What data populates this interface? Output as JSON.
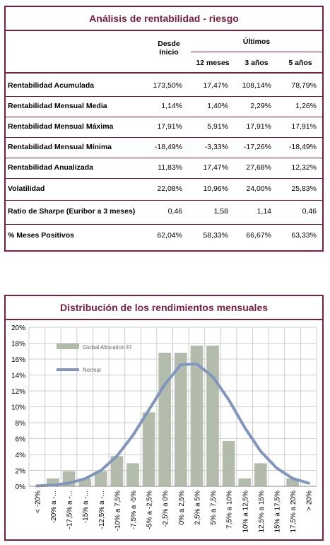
{
  "table": {
    "title": "Análisis de rentabilidad - riesgo",
    "headers": {
      "since": "Desde\nInicio",
      "since_line1": "Desde",
      "since_line2": "Inicio",
      "last": "Últimos",
      "cols": [
        "12 meses",
        "3 años",
        "5 años"
      ]
    },
    "rows": [
      {
        "label": "Rentabilidad Acumulada",
        "values": [
          "173,50%",
          "17,47%",
          "108,14%",
          "78,79%"
        ]
      },
      {
        "label": "Rentabilidad Mensual Media",
        "values": [
          "1,14%",
          "1,40%",
          "2,29%",
          "1,26%"
        ]
      },
      {
        "label": "Rentabilidad Mensual Máxima",
        "values": [
          "17,91%",
          "5,91%",
          "17,91%",
          "17,91%"
        ]
      },
      {
        "label": "Rentabilidad Mensual Mínima",
        "values": [
          "-18,49%",
          "-3,33%",
          "-17,26%",
          "-18,49%"
        ]
      },
      {
        "label": "Rentabilidad Anualizada",
        "values": [
          "11,83%",
          "17,47%",
          "27,68%",
          "12,32%"
        ]
      },
      {
        "label": "Volatilidad",
        "values": [
          "22,08%",
          "10,96%",
          "24,00%",
          "25,83%"
        ]
      },
      {
        "label": "Ratio de Sharpe (Euribor a 3 meses)",
        "values": [
          "0,46",
          "1,58",
          "1,14",
          "0,46"
        ]
      },
      {
        "label": "% Meses Positivos",
        "values": [
          "62,04%",
          "58,33%",
          "66,67%",
          "63,33%"
        ]
      }
    ]
  },
  "chart_title": "Distribución de los rendimientos mensuales",
  "chart_data": {
    "type": "bar",
    "title": "Distribución de los rendimientos mensuales",
    "categories": [
      "< -20%",
      "-20% a -...",
      "-17,5% a -...",
      "-15% a -...",
      "-12,5% a -...",
      "-10% a 7,5%",
      "-7,5% a -5%",
      "-5% a -2,5%",
      "-2,5% a 0%",
      "0% a 2,5%",
      "2,5% a 5%",
      "5% a 7,5%",
      "7,5% a 10%",
      "10% a 12,5%",
      "12,5% a 15%",
      "15% a 17,5%",
      "17,5% a 20%",
      "> 20%"
    ],
    "series": [
      {
        "name": "Global Allocation FI",
        "type": "bar",
        "color": "#b3bcab",
        "values": [
          0,
          1.0,
          1.9,
          1.0,
          1.9,
          3.8,
          2.9,
          9.3,
          16.8,
          16.8,
          17.7,
          17.7,
          5.7,
          1.0,
          2.9,
          0,
          1.0,
          0
        ]
      },
      {
        "name": "Normal",
        "type": "line",
        "color": "#8096bf",
        "values": [
          0.05,
          0.15,
          0.4,
          0.95,
          2.0,
          3.8,
          6.4,
          9.6,
          12.8,
          15.3,
          15.4,
          13.8,
          10.9,
          7.4,
          4.4,
          2.3,
          1.0,
          0.4
        ]
      }
    ],
    "ylabel": "",
    "ylim": [
      0,
      20
    ],
    "yticks": [
      "0%",
      "2%",
      "4%",
      "6%",
      "8%",
      "10%",
      "12%",
      "14%",
      "16%",
      "18%",
      "20%"
    ],
    "grid": true,
    "legend": "top-left"
  },
  "colors": {
    "accent": "#7a1f3d",
    "bar": "#b3bcab",
    "line": "#8096bf",
    "grid": "#cccccc"
  }
}
